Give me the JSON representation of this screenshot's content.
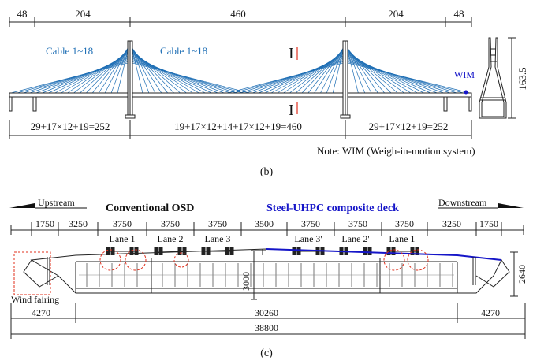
{
  "top": {
    "spans": [
      "48",
      "204",
      "460",
      "204",
      "48"
    ],
    "cable_left": "Cable 1~18",
    "cable_right": "Cable 1~18",
    "section_mark_top": "I",
    "section_mark_bottom": "I",
    "wim": "WIM",
    "height": "163.5",
    "cable_counts": [
      "29+17×12+19=252",
      "19+17×12+14+17×12+19=460",
      "29+17×12+19=252"
    ],
    "note": "Note: WIM (Weigh-in-motion system)",
    "caption": "(b)"
  },
  "bottom": {
    "upstream": "Upstream",
    "downstream": "Downstream",
    "title_left": "Conventional OSD",
    "title_right": "Steel-UHPC composite deck",
    "dims": [
      "1750",
      "3250",
      "3750",
      "3750",
      "3750",
      "3500",
      "3750",
      "3750",
      "3750",
      "3250",
      "1750"
    ],
    "lanes": [
      "Lane 1",
      "Lane 2",
      "Lane 3",
      "Lane 3'",
      "Lane 2'",
      "Lane 1'"
    ],
    "depth": "3000",
    "height": "2640",
    "wind_fairing": "Wind fairing",
    "bottom_dims": [
      "4270",
      "30260",
      "4270"
    ],
    "total": "38800",
    "caption": "(c)"
  },
  "colors": {
    "cable": "#1f6fb5",
    "section": "#e0301e",
    "deck_right": "#1515c8",
    "wim": "#1515c8",
    "line": "#222222"
  }
}
